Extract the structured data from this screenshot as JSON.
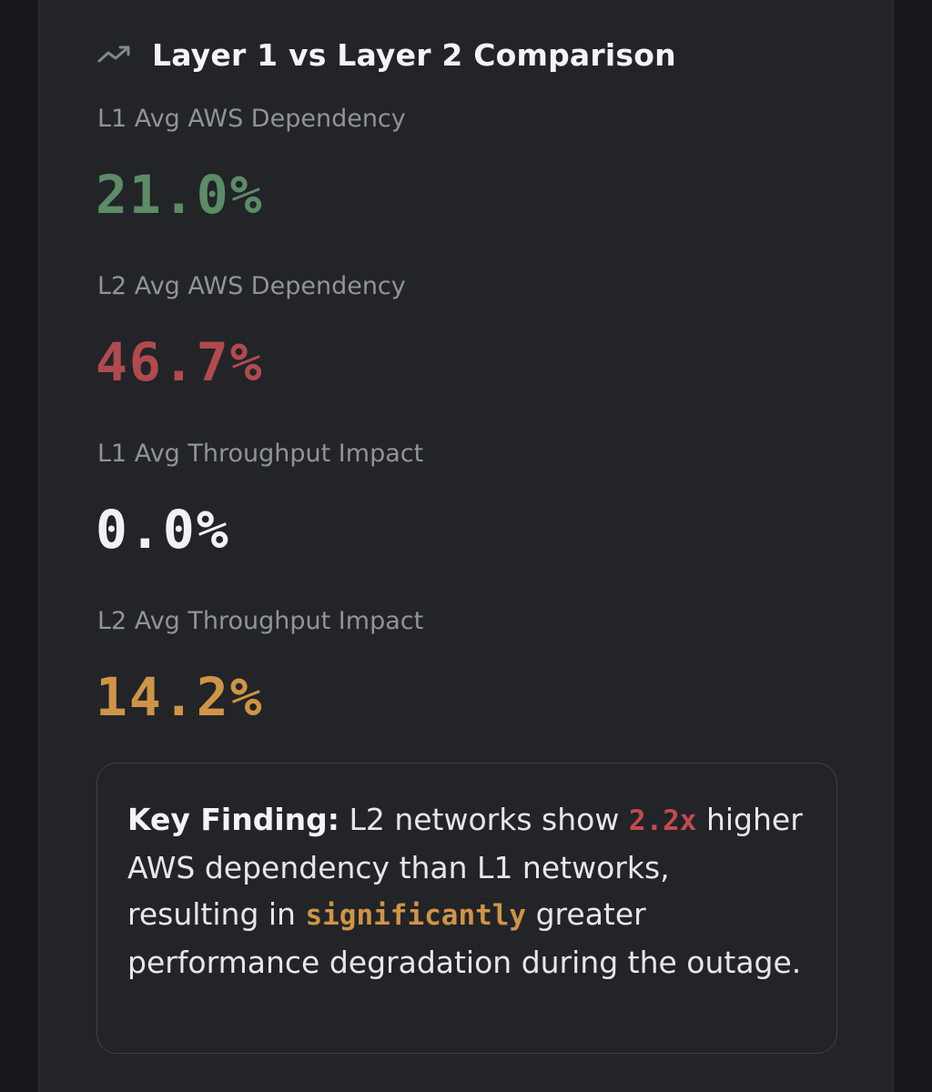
{
  "header": {
    "icon": "trending-up-icon",
    "title": "Layer 1 vs Layer 2 Comparison"
  },
  "metrics": [
    {
      "label": "L1 Avg AWS Dependency",
      "value": "21.0%",
      "color": "#5c8c66"
    },
    {
      "label": "L2 Avg AWS Dependency",
      "value": "46.7%",
      "color": "#b04a4e"
    },
    {
      "label": "L1 Avg Throughput Impact",
      "value": "0.0%",
      "color": "#f1f2f4"
    },
    {
      "label": "L2 Avg Throughput Impact",
      "value": "14.2%",
      "color": "#cf9447"
    }
  ],
  "finding": {
    "lead": "Key Finding:",
    "text_1": " L2 networks show ",
    "multiplier": "2.2x",
    "multiplier_color": "#c44a4f",
    "text_2": " higher AWS dependency than L1 networks, resulting in ",
    "emphasis": "significantly",
    "emphasis_color": "#cf9447",
    "text_3": " greater performance degradation during the outage."
  }
}
